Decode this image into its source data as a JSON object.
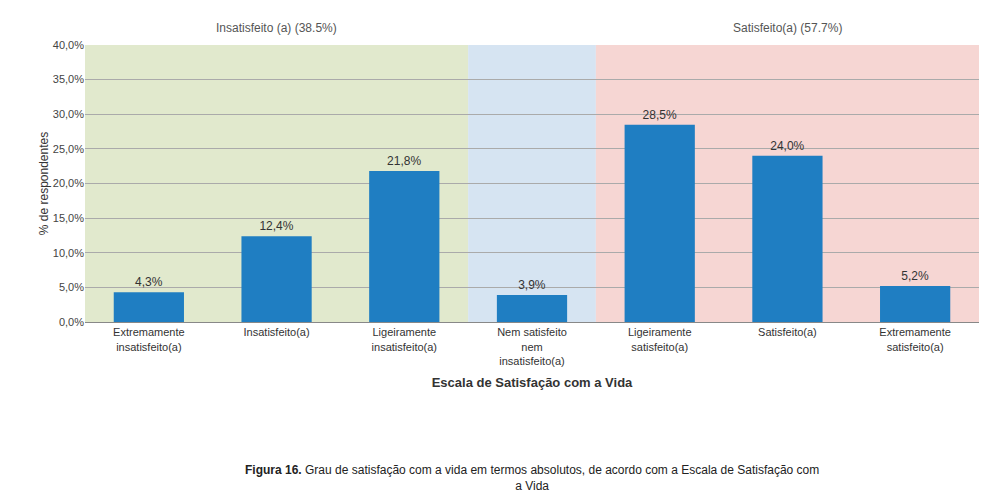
{
  "chart_data": {
    "type": "bar",
    "categories": [
      "Extremamente\ninsatisfeito(a)",
      "Insatisfeito(a)",
      "Ligeiramente\ninsatisfeito(a)",
      "Nem satisfeito\nnem\ninsatisfeito(a)",
      "Ligeiramente\nsatisfeito(a)",
      "Satisfeito(a)",
      "Extremamente\nsatisfeito(a)"
    ],
    "values": [
      4.3,
      12.4,
      21.8,
      3.9,
      28.5,
      24.0,
      5.2
    ],
    "value_labels": [
      "4,3%",
      "12,4%",
      "21,8%",
      "3,9%",
      "28,5%",
      "24,0%",
      "5,2%"
    ],
    "data_labels": true,
    "color": "#1F7EC2",
    "ylabel": "% de respondentes",
    "xlabel": "Escala de Satisfação com a Vida",
    "ylim": [
      0,
      40
    ],
    "yticks": [
      {
        "value": 0,
        "label": "0,0%"
      },
      {
        "value": 5,
        "label": "5,0%"
      },
      {
        "value": 10,
        "label": "10,0%"
      },
      {
        "value": 15,
        "label": "15,0%"
      },
      {
        "value": 20,
        "label": "20,0%"
      },
      {
        "value": 25,
        "label": "25,0%"
      },
      {
        "value": 30,
        "label": "30,0%"
      },
      {
        "value": 35,
        "label": "35,0%"
      },
      {
        "value": 40,
        "label": "40,0%"
      }
    ],
    "grid": true,
    "annotations": [
      {
        "text": "Insatisfeito (a) (38.5%)",
        "x": 1
      },
      {
        "text": "Satisfeito(a) (57.7%)",
        "x": 5
      },
      {
        "text": "Figura 16. Grau de satisfação com a vida em termos absolutos, de acordo com a Escala de Satisfação com\na Vida"
      }
    ]
  }
}
